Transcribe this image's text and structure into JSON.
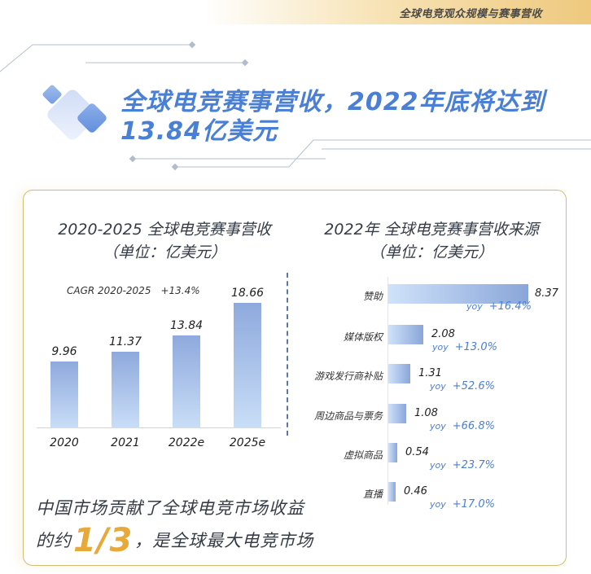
{
  "banner": {
    "text": "全球电竞观众规模与赛事营收"
  },
  "headline": {
    "line1": "全球电竞赛事营收，2022年底将达到",
    "line2": "13.84亿美元"
  },
  "left_panel": {
    "title_line1": "2020-2025 全球电竞赛事营收",
    "title_line2": "（单位：亿美元）",
    "cagr_label": "CAGR 2020-2025",
    "cagr_value": "+13.4%"
  },
  "right_panel": {
    "title_line1": "2022年 全球电竞赛事营收来源",
    "title_line2": "（单位：亿美元）",
    "yoy_tag": "yoy"
  },
  "bottom": {
    "line1": "中国市场贡献了全球电竞市场收益",
    "line2_pre": "的约",
    "line2_frac": "1/3",
    "line2_post": "，是全球最大电竞市场"
  },
  "colors": {
    "accent_blue": "#4a7fd6",
    "gold": "#e6a93a",
    "card_border": "#d4bd72",
    "bar_top": "#8ea9dd",
    "bar_bottom": "#c9def7"
  },
  "chart_data": [
    {
      "type": "bar",
      "title": "2020-2025 全球电竞赛事营收（单位：亿美元）",
      "categories": [
        "2020",
        "2021",
        "2022e",
        "2025e"
      ],
      "values": [
        9.96,
        11.37,
        13.84,
        18.66
      ],
      "labels": [
        "9.96",
        "11.37",
        "13.84",
        "18.66"
      ],
      "annotation": "CAGR 2020-2025 +13.4%",
      "xlabel": "",
      "ylabel": "",
      "ylim": [
        0,
        20
      ],
      "grid": false
    },
    {
      "type": "bar",
      "orientation": "horizontal",
      "title": "2022年 全球电竞赛事营收来源（单位：亿美元）",
      "categories": [
        "赞助",
        "媒体版权",
        "游戏发行商补贴",
        "周边商品与票务",
        "虚拟商品",
        "直播"
      ],
      "values": [
        8.37,
        2.08,
        1.31,
        1.08,
        0.54,
        0.46
      ],
      "labels": [
        "8.37",
        "2.08",
        "1.31",
        "1.08",
        "0.54",
        "0.46"
      ],
      "yoy": [
        "+16.4%",
        "+13.0%",
        "+52.6%",
        "+66.8%",
        "+23.7%",
        "+17.0%"
      ],
      "xlim": [
        0,
        9
      ],
      "grid": false
    }
  ]
}
